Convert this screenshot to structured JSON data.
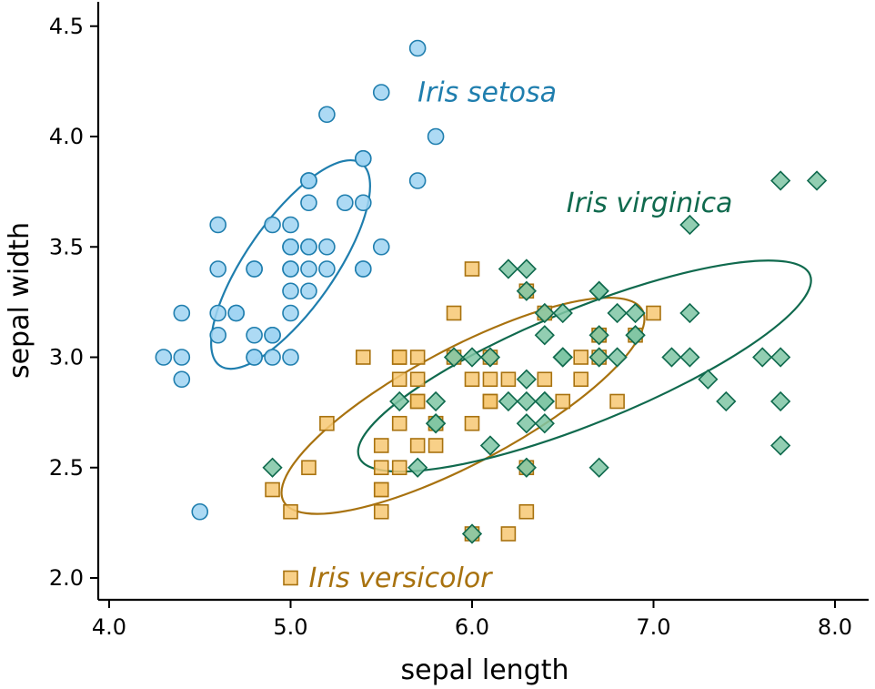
{
  "chart_data": {
    "type": "scatter",
    "xlabel": "sepal length",
    "ylabel": "sepal width",
    "xlim": [
      4.0,
      8.2
    ],
    "ylim": [
      1.9,
      4.6
    ],
    "xticks": [
      {
        "value": 4.0,
        "label": "4.0"
      },
      {
        "value": 5.0,
        "label": "5.0"
      },
      {
        "value": 6.0,
        "label": "6.0"
      },
      {
        "value": 7.0,
        "label": "7.0"
      },
      {
        "value": 8.0,
        "label": "8.0"
      }
    ],
    "yticks": [
      {
        "value": 2.0,
        "label": "2.0"
      },
      {
        "value": 2.5,
        "label": "2.5"
      },
      {
        "value": 3.0,
        "label": "3.0"
      },
      {
        "value": 3.5,
        "label": "3.5"
      },
      {
        "value": 4.0,
        "label": "4.0"
      },
      {
        "value": 4.5,
        "label": "4.5"
      }
    ],
    "grid": false,
    "legend": "none",
    "series": [
      {
        "name": "Iris setosa",
        "marker": "circle",
        "color": "#1f7eae",
        "fill": "#9fd3f2",
        "label_anchor": [
          5.7,
          4.2
        ],
        "ellipse": {
          "center": [
            5.0,
            3.42
          ],
          "rx": 0.68,
          "ry": 0.2,
          "angle_deg": -55
        },
        "points": [
          [
            5.1,
            3.5
          ],
          [
            4.9,
            3.0
          ],
          [
            4.7,
            3.2
          ],
          [
            4.6,
            3.1
          ],
          [
            5.0,
            3.6
          ],
          [
            5.4,
            3.9
          ],
          [
            4.6,
            3.4
          ],
          [
            5.0,
            3.4
          ],
          [
            4.4,
            2.9
          ],
          [
            4.9,
            3.1
          ],
          [
            5.4,
            3.7
          ],
          [
            4.8,
            3.4
          ],
          [
            4.8,
            3.0
          ],
          [
            4.3,
            3.0
          ],
          [
            5.8,
            4.0
          ],
          [
            5.7,
            4.4
          ],
          [
            5.4,
            3.9
          ],
          [
            5.1,
            3.5
          ],
          [
            5.7,
            3.8
          ],
          [
            5.1,
            3.8
          ],
          [
            5.4,
            3.4
          ],
          [
            5.1,
            3.7
          ],
          [
            4.6,
            3.6
          ],
          [
            5.1,
            3.3
          ],
          [
            4.8,
            3.4
          ],
          [
            5.0,
            3.0
          ],
          [
            5.0,
            3.4
          ],
          [
            5.2,
            3.5
          ],
          [
            5.2,
            3.4
          ],
          [
            4.7,
            3.2
          ],
          [
            4.8,
            3.1
          ],
          [
            5.4,
            3.4
          ],
          [
            5.2,
            4.1
          ],
          [
            5.5,
            4.2
          ],
          [
            4.9,
            3.1
          ],
          [
            5.0,
            3.2
          ],
          [
            5.5,
            3.5
          ],
          [
            4.9,
            3.6
          ],
          [
            4.4,
            3.0
          ],
          [
            5.1,
            3.4
          ],
          [
            5.0,
            3.5
          ],
          [
            4.5,
            2.3
          ],
          [
            4.4,
            3.2
          ],
          [
            5.0,
            3.5
          ],
          [
            5.1,
            3.8
          ],
          [
            4.8,
            3.0
          ],
          [
            5.1,
            3.8
          ],
          [
            4.6,
            3.2
          ],
          [
            5.3,
            3.7
          ],
          [
            5.0,
            3.3
          ]
        ]
      },
      {
        "name": "Iris versicolor",
        "marker": "square",
        "color": "#a8720f",
        "fill": "#f7c873",
        "label_anchor": [
          5.1,
          2.0
        ],
        "ellipse": {
          "center": [
            5.95,
            2.78
          ],
          "rx": 1.12,
          "ry": 0.26,
          "angle_deg": -28
        },
        "points": [
          [
            7.0,
            3.2
          ],
          [
            6.4,
            3.2
          ],
          [
            6.9,
            3.1
          ],
          [
            5.5,
            2.3
          ],
          [
            6.5,
            2.8
          ],
          [
            5.7,
            2.8
          ],
          [
            6.3,
            3.3
          ],
          [
            4.9,
            2.4
          ],
          [
            6.6,
            2.9
          ],
          [
            5.2,
            2.7
          ],
          [
            5.0,
            2.0
          ],
          [
            5.9,
            3.0
          ],
          [
            6.0,
            2.2
          ],
          [
            6.1,
            2.9
          ],
          [
            5.6,
            2.9
          ],
          [
            6.7,
            3.1
          ],
          [
            5.6,
            3.0
          ],
          [
            5.8,
            2.7
          ],
          [
            6.2,
            2.2
          ],
          [
            5.6,
            2.5
          ],
          [
            5.9,
            3.2
          ],
          [
            6.1,
            2.8
          ],
          [
            6.3,
            2.5
          ],
          [
            6.1,
            2.8
          ],
          [
            6.4,
            2.9
          ],
          [
            6.6,
            3.0
          ],
          [
            6.8,
            2.8
          ],
          [
            6.7,
            3.0
          ],
          [
            6.0,
            2.9
          ],
          [
            5.7,
            2.6
          ],
          [
            5.5,
            2.4
          ],
          [
            5.5,
            2.4
          ],
          [
            5.8,
            2.7
          ],
          [
            6.0,
            2.7
          ],
          [
            5.4,
            3.0
          ],
          [
            6.0,
            3.4
          ],
          [
            6.7,
            3.1
          ],
          [
            6.3,
            2.3
          ],
          [
            5.6,
            3.0
          ],
          [
            5.5,
            2.5
          ],
          [
            5.5,
            2.6
          ],
          [
            6.1,
            3.0
          ],
          [
            5.8,
            2.6
          ],
          [
            5.0,
            2.3
          ],
          [
            5.6,
            2.7
          ],
          [
            5.7,
            3.0
          ],
          [
            5.7,
            2.9
          ],
          [
            6.2,
            2.9
          ],
          [
            5.1,
            2.5
          ],
          [
            5.7,
            2.8
          ]
        ]
      },
      {
        "name": "Iris virginica",
        "marker": "diamond",
        "color": "#106a4e",
        "fill": "#7fc6a4",
        "label_anchor": [
          6.52,
          3.7
        ],
        "ellipse": {
          "center": [
            6.62,
            2.96
          ],
          "rx": 1.34,
          "ry": 0.26,
          "angle_deg": -22
        },
        "points": [
          [
            6.3,
            3.3
          ],
          [
            5.8,
            2.7
          ],
          [
            7.1,
            3.0
          ],
          [
            6.3,
            2.9
          ],
          [
            6.5,
            3.0
          ],
          [
            7.6,
            3.0
          ],
          [
            4.9,
            2.5
          ],
          [
            7.3,
            2.9
          ],
          [
            6.7,
            2.5
          ],
          [
            7.2,
            3.6
          ],
          [
            6.5,
            3.2
          ],
          [
            6.4,
            2.7
          ],
          [
            6.8,
            3.0
          ],
          [
            5.7,
            2.5
          ],
          [
            5.8,
            2.8
          ],
          [
            6.4,
            3.2
          ],
          [
            6.5,
            3.0
          ],
          [
            7.7,
            3.8
          ],
          [
            7.7,
            2.6
          ],
          [
            6.0,
            2.2
          ],
          [
            6.9,
            3.2
          ],
          [
            5.6,
            2.8
          ],
          [
            7.7,
            2.8
          ],
          [
            6.3,
            2.7
          ],
          [
            6.7,
            3.3
          ],
          [
            7.2,
            3.2
          ],
          [
            6.2,
            2.8
          ],
          [
            6.1,
            3.0
          ],
          [
            6.4,
            2.8
          ],
          [
            7.2,
            3.0
          ],
          [
            7.4,
            2.8
          ],
          [
            7.9,
            3.8
          ],
          [
            6.4,
            2.8
          ],
          [
            6.3,
            2.8
          ],
          [
            6.1,
            2.6
          ],
          [
            7.7,
            3.0
          ],
          [
            6.3,
            3.4
          ],
          [
            6.4,
            3.1
          ],
          [
            6.0,
            3.0
          ],
          [
            6.9,
            3.1
          ],
          [
            6.7,
            3.1
          ],
          [
            6.9,
            3.1
          ],
          [
            5.8,
            2.7
          ],
          [
            6.8,
            3.2
          ],
          [
            6.7,
            3.3
          ],
          [
            6.7,
            3.0
          ],
          [
            6.3,
            2.5
          ],
          [
            6.5,
            3.0
          ],
          [
            6.2,
            3.4
          ],
          [
            5.9,
            3.0
          ]
        ]
      }
    ]
  }
}
